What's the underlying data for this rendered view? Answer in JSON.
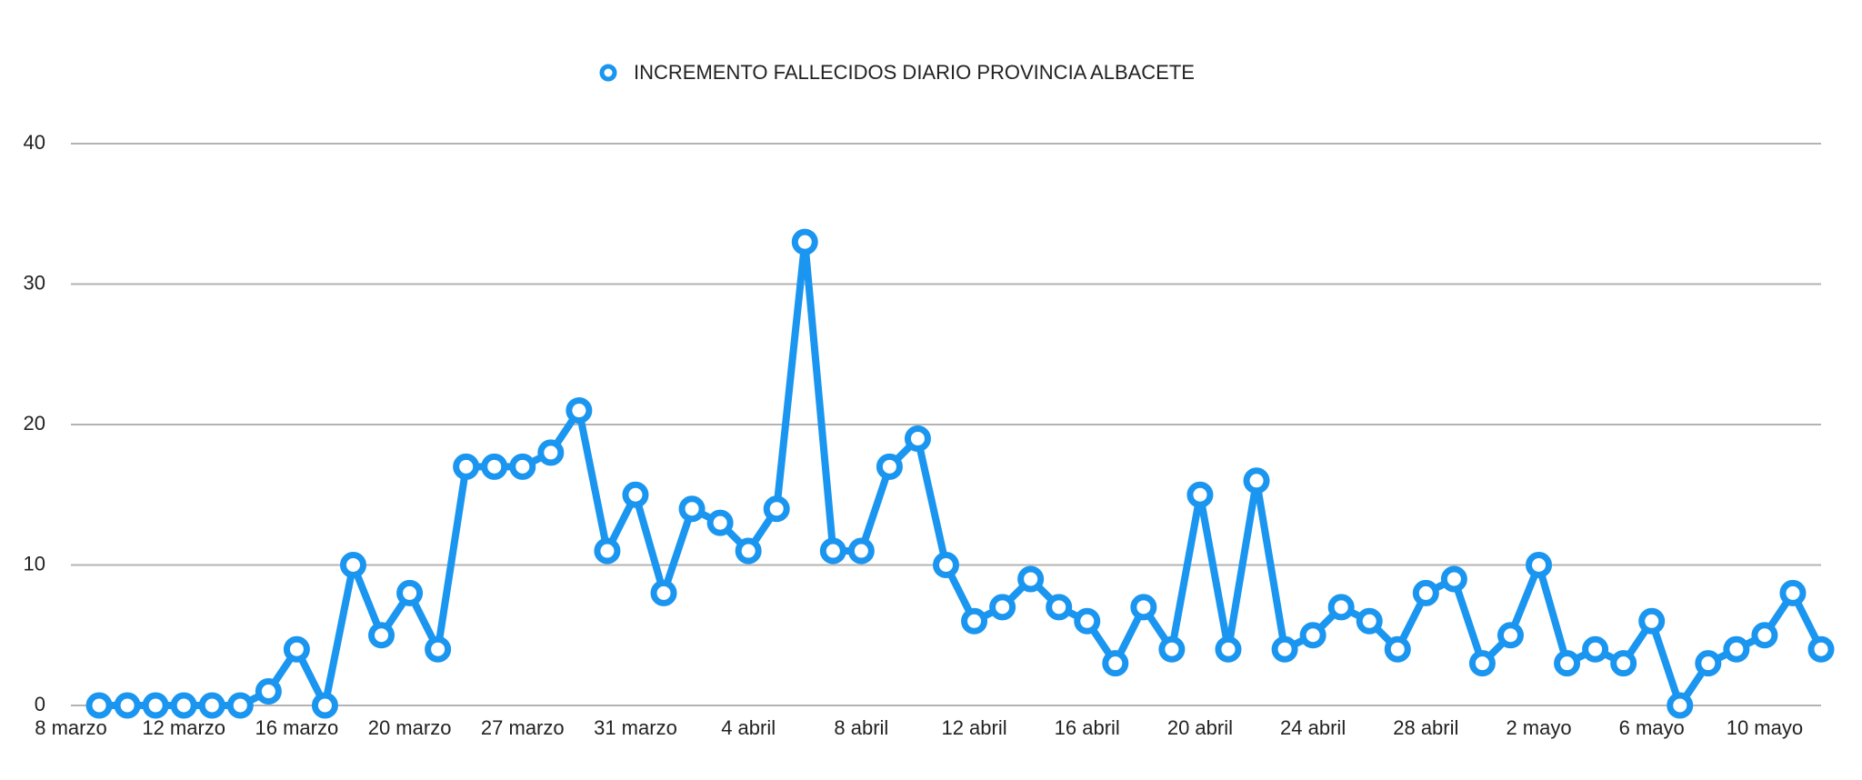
{
  "chart_data": {
    "type": "line",
    "categories": [
      "8 marzo",
      null,
      null,
      null,
      "12 marzo",
      null,
      null,
      null,
      "16 marzo",
      null,
      null,
      null,
      "20 marzo",
      null,
      null,
      null,
      "27 marzo",
      null,
      null,
      null,
      "31 marzo",
      null,
      null,
      null,
      "4 abril",
      null,
      null,
      null,
      "8 abril",
      null,
      null,
      null,
      "12 abril",
      null,
      null,
      null,
      "16 abril",
      null,
      null,
      null,
      "20 abril",
      null,
      null,
      null,
      "24 abril",
      null,
      null,
      null,
      "28 abril",
      null,
      null,
      null,
      "2 mayo",
      null,
      null,
      null,
      "6 mayo",
      null,
      null,
      null,
      "10 mayo",
      null,
      null
    ],
    "series": [
      {
        "name": "INCREMENTO FALLECIDOS DIARIO PROVINCIA ALBACETE",
        "color": "#1a96f0",
        "values": [
          null,
          0,
          0,
          0,
          0,
          0,
          0,
          1,
          4,
          0,
          10,
          5,
          8,
          4,
          17,
          17,
          17,
          18,
          21,
          11,
          15,
          8,
          14,
          13,
          11,
          14,
          33,
          11,
          11,
          17,
          19,
          10,
          6,
          7,
          9,
          7,
          6,
          3,
          7,
          4,
          15,
          4,
          16,
          4,
          5,
          7,
          6,
          4,
          8,
          9,
          3,
          5,
          10,
          3,
          4,
          3,
          6,
          0,
          3,
          4,
          5,
          8,
          4
        ]
      }
    ],
    "ylim": [
      0,
      40
    ],
    "yticks": [
      0,
      10,
      20,
      30,
      40
    ],
    "grid": true,
    "legend": "top"
  }
}
